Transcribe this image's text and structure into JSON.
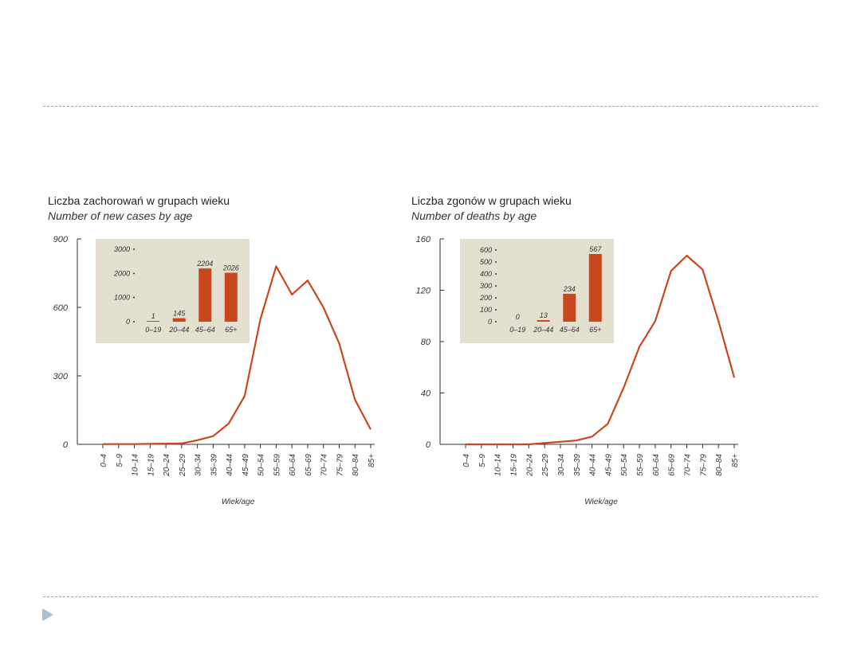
{
  "colors": {
    "line": "#c8471f",
    "bar": "#c8471f",
    "inset_bg": "#e3e0cf",
    "divider": "#8fa8c0",
    "nav_icon": "#a9bfd4"
  },
  "age_label": "Wiek/age",
  "nav_icon": "play-triangle-icon",
  "chart_data": [
    {
      "type": "line",
      "title": "Liczba zachorowań w grupach wieku",
      "subtitle": "Number of new cases by age",
      "xlabel": "Wiek/age",
      "x": [
        "0–4",
        "5–9",
        "10–14",
        "15–19",
        "20–24",
        "25–29",
        "30–34",
        "35–39",
        "40–44",
        "45–49",
        "50–54",
        "55–59",
        "60–64",
        "65–69",
        "70–74",
        "75–79",
        "80–84",
        "85+"
      ],
      "values": [
        1,
        1,
        1,
        2,
        3,
        4,
        18,
        36,
        92,
        212,
        548,
        780,
        656,
        718,
        600,
        442,
        196,
        65
      ],
      "ylim": [
        0,
        900
      ],
      "yticks": [
        0,
        300,
        600,
        900
      ],
      "inset": {
        "type": "bar",
        "categories": [
          "0–19",
          "20–44",
          "45–64",
          "65+"
        ],
        "values": [
          1,
          145,
          2204,
          2026
        ],
        "labels": [
          "1",
          "145",
          "2204",
          "2026"
        ],
        "ylim": [
          0,
          3000
        ],
        "yticks": [
          0,
          1000,
          2000,
          3000
        ]
      }
    },
    {
      "type": "line",
      "title": "Liczba zgonów w grupach wieku",
      "subtitle": "Number of deaths by age",
      "xlabel": "Wiek/age",
      "x": [
        "0–4",
        "5–9",
        "10–14",
        "15–19",
        "20–24",
        "25–29",
        "30–34",
        "35–39",
        "40–44",
        "45–49",
        "50–54",
        "55–59",
        "60–64",
        "65–69",
        "70–74",
        "75–79",
        "80–84",
        "85+"
      ],
      "values": [
        0,
        0,
        0,
        0,
        0,
        1,
        2,
        3,
        6,
        16,
        44,
        76,
        96,
        135,
        147,
        136,
        96,
        52
      ],
      "ylim": [
        0,
        160
      ],
      "yticks": [
        0,
        40,
        80,
        120,
        160
      ],
      "inset": {
        "type": "bar",
        "categories": [
          "0–19",
          "20–44",
          "45–64",
          "65+"
        ],
        "values": [
          0,
          13,
          234,
          567
        ],
        "labels": [
          "0",
          "13",
          "234",
          "567"
        ],
        "ylim": [
          0,
          600
        ],
        "yticks": [
          0,
          100,
          200,
          300,
          400,
          500,
          600
        ]
      }
    }
  ]
}
